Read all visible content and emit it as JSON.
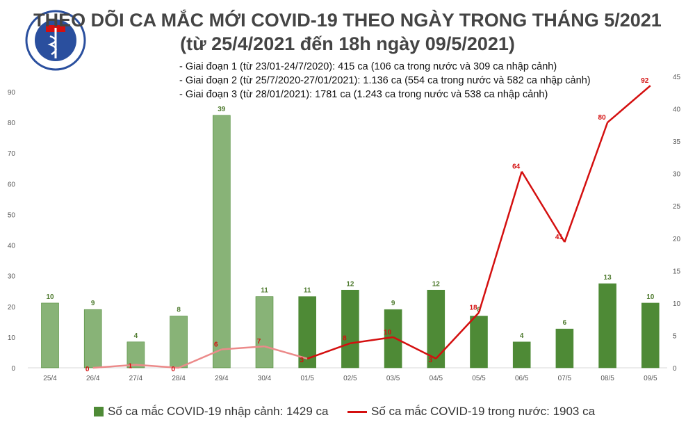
{
  "logo": {
    "text_top": "BỘ Y TẾ",
    "text_bottom": "MINISTRY OF HEALTH"
  },
  "title": "THEO DÕI CA MẮC MỚI COVID-19 THEO NGÀY TRONG THÁNG 5/2021",
  "subtitle": "(từ 25/4/2021 đến 18h ngày 09/5/2021)",
  "notes": [
    "- Giai đoạn 1 (từ 23/01-24/7/2020): 415 ca (106 ca trong nước và 309 ca nhập cảnh)",
    "- Giai đoạn 2 (từ 25/7/2020-27/01/2021): 1.136 ca (554 ca trong nước và 582 ca nhập cảnh)",
    "- Giai đoạn 3 (từ 28/01/2021): 1781 ca (1.243 ca trong nước và 538 ca nhập cảnh)"
  ],
  "chart_data": {
    "type": "bar+line",
    "categories": [
      "25/4",
      "26/4",
      "27/4",
      "28/4",
      "29/4",
      "30/4",
      "01/5",
      "02/5",
      "03/5",
      "04/5",
      "05/5",
      "06/5",
      "07/5",
      "08/5",
      "09/5"
    ],
    "series": [
      {
        "name": "Số ca mắc COVID-19 nhập cảnh: 1429 ca",
        "type": "bar",
        "axis": "right",
        "values": [
          10,
          9,
          4,
          8,
          39,
          11,
          11,
          12,
          9,
          12,
          8,
          4,
          6,
          13,
          10
        ],
        "color": "#4e8a36",
        "color_light": "#88b377"
      },
      {
        "name": "Số ca mắc COVID-19 trong nước: 1903 ca",
        "type": "line",
        "axis": "left",
        "values": [
          null,
          0,
          1,
          0,
          6,
          7,
          3,
          8,
          10,
          3,
          18,
          64,
          41,
          80,
          92
        ],
        "color": "#d40f0f",
        "color_light": "#ec8a8a"
      }
    ],
    "y_left": {
      "range": [
        0,
        90
      ],
      "ticks": [
        0,
        10,
        20,
        30,
        40,
        50,
        60,
        70,
        80,
        90
      ]
    },
    "y_right": {
      "range": [
        0,
        45
      ],
      "ticks": [
        0,
        5,
        10,
        15,
        20,
        25,
        30,
        35,
        40,
        45
      ]
    },
    "grid": false,
    "legend": "bottom"
  }
}
